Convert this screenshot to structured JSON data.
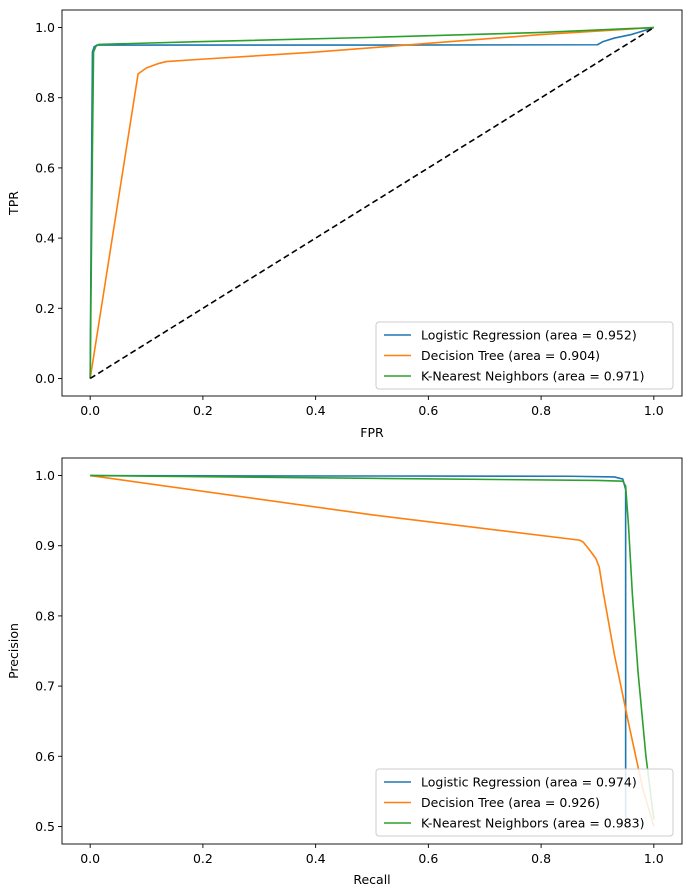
{
  "chart_data": [
    {
      "type": "line",
      "title": "",
      "xlabel": "FPR",
      "ylabel": "TPR",
      "xlim": [
        -0.05,
        1.05
      ],
      "ylim": [
        -0.05,
        1.05
      ],
      "xticks": [
        0.0,
        0.2,
        0.4,
        0.6,
        0.8,
        1.0
      ],
      "yticks": [
        0.0,
        0.2,
        0.4,
        0.6,
        0.8,
        1.0
      ],
      "tick_labels_x": [
        "0.0",
        "0.2",
        "0.4",
        "0.6",
        "0.8",
        "1.0"
      ],
      "tick_labels_y": [
        "0.0",
        "0.2",
        "0.4",
        "0.6",
        "0.8",
        "1.0"
      ],
      "grid": false,
      "legend_position": "bottom-right",
      "series": [
        {
          "name": "Logistic Regression (area = 0.952)",
          "color": "#1f77b4",
          "x": [
            0.0,
            0.002,
            0.004,
            0.007,
            0.012,
            0.1,
            0.5,
            0.9,
            0.91,
            0.93,
            0.96,
            1.0
          ],
          "y": [
            0.0,
            0.5,
            0.93,
            0.945,
            0.95,
            0.95,
            0.95,
            0.951,
            0.96,
            0.97,
            0.98,
            1.0
          ]
        },
        {
          "name": "Decision Tree (area = 0.904)",
          "color": "#ff7f0e",
          "x": [
            0.0,
            0.085,
            0.1,
            0.12,
            0.135,
            0.2,
            0.4,
            0.6,
            0.8,
            1.0
          ],
          "y": [
            0.0,
            0.868,
            0.885,
            0.897,
            0.903,
            0.91,
            0.93,
            0.955,
            0.98,
            1.0
          ]
        },
        {
          "name": "K-Nearest Neighbors (area = 0.971)",
          "color": "#2ca02c",
          "x": [
            0.0,
            0.004,
            0.006,
            0.01,
            0.015,
            0.2,
            0.5,
            0.8,
            1.0
          ],
          "y": [
            0.0,
            0.65,
            0.93,
            0.946,
            0.952,
            0.96,
            0.972,
            0.986,
            1.0
          ]
        },
        {
          "name": "",
          "color": "#000000",
          "dashed": true,
          "x": [
            0.0,
            1.0
          ],
          "y": [
            0.0,
            1.0
          ]
        }
      ]
    },
    {
      "type": "line",
      "title": "",
      "xlabel": "Recall",
      "ylabel": "Precision",
      "xlim": [
        -0.05,
        1.05
      ],
      "ylim": [
        0.475,
        1.025
      ],
      "xticks": [
        0.0,
        0.2,
        0.4,
        0.6,
        0.8,
        1.0
      ],
      "yticks": [
        0.5,
        0.6,
        0.7,
        0.8,
        0.9,
        1.0
      ],
      "tick_labels_x": [
        "0.0",
        "0.2",
        "0.4",
        "0.6",
        "0.8",
        "1.0"
      ],
      "tick_labels_y": [
        "0.5",
        "0.6",
        "0.7",
        "0.8",
        "0.9",
        "1.0"
      ],
      "grid": false,
      "legend_position": "bottom-right",
      "series": [
        {
          "name": "Logistic Regression (area = 0.974)",
          "color": "#1f77b4",
          "x": [
            0.0,
            0.3,
            0.6,
            0.85,
            0.93,
            0.945,
            0.95,
            0.95,
            0.95
          ],
          "y": [
            1.0,
            0.9995,
            0.9993,
            0.999,
            0.998,
            0.995,
            0.98,
            0.7,
            0.51
          ]
        },
        {
          "name": "Decision Tree (area = 0.926)",
          "color": "#ff7f0e",
          "x": [
            0.0,
            0.5,
            0.868,
            0.875,
            0.885,
            0.897,
            0.903,
            0.91,
            0.93,
            0.955,
            0.98,
            1.0
          ],
          "y": [
            1.0,
            0.944,
            0.908,
            0.905,
            0.895,
            0.882,
            0.87,
            0.835,
            0.745,
            0.648,
            0.555,
            0.5
          ]
        },
        {
          "name": "K-Nearest Neighbors (area = 0.983)",
          "color": "#2ca02c",
          "x": [
            0.0,
            0.5,
            0.9,
            0.945,
            0.95,
            0.955,
            0.962,
            0.972,
            0.986,
            1.0
          ],
          "y": [
            1.0,
            0.996,
            0.993,
            0.992,
            0.985,
            0.93,
            0.83,
            0.72,
            0.6,
            0.51
          ]
        }
      ]
    }
  ]
}
